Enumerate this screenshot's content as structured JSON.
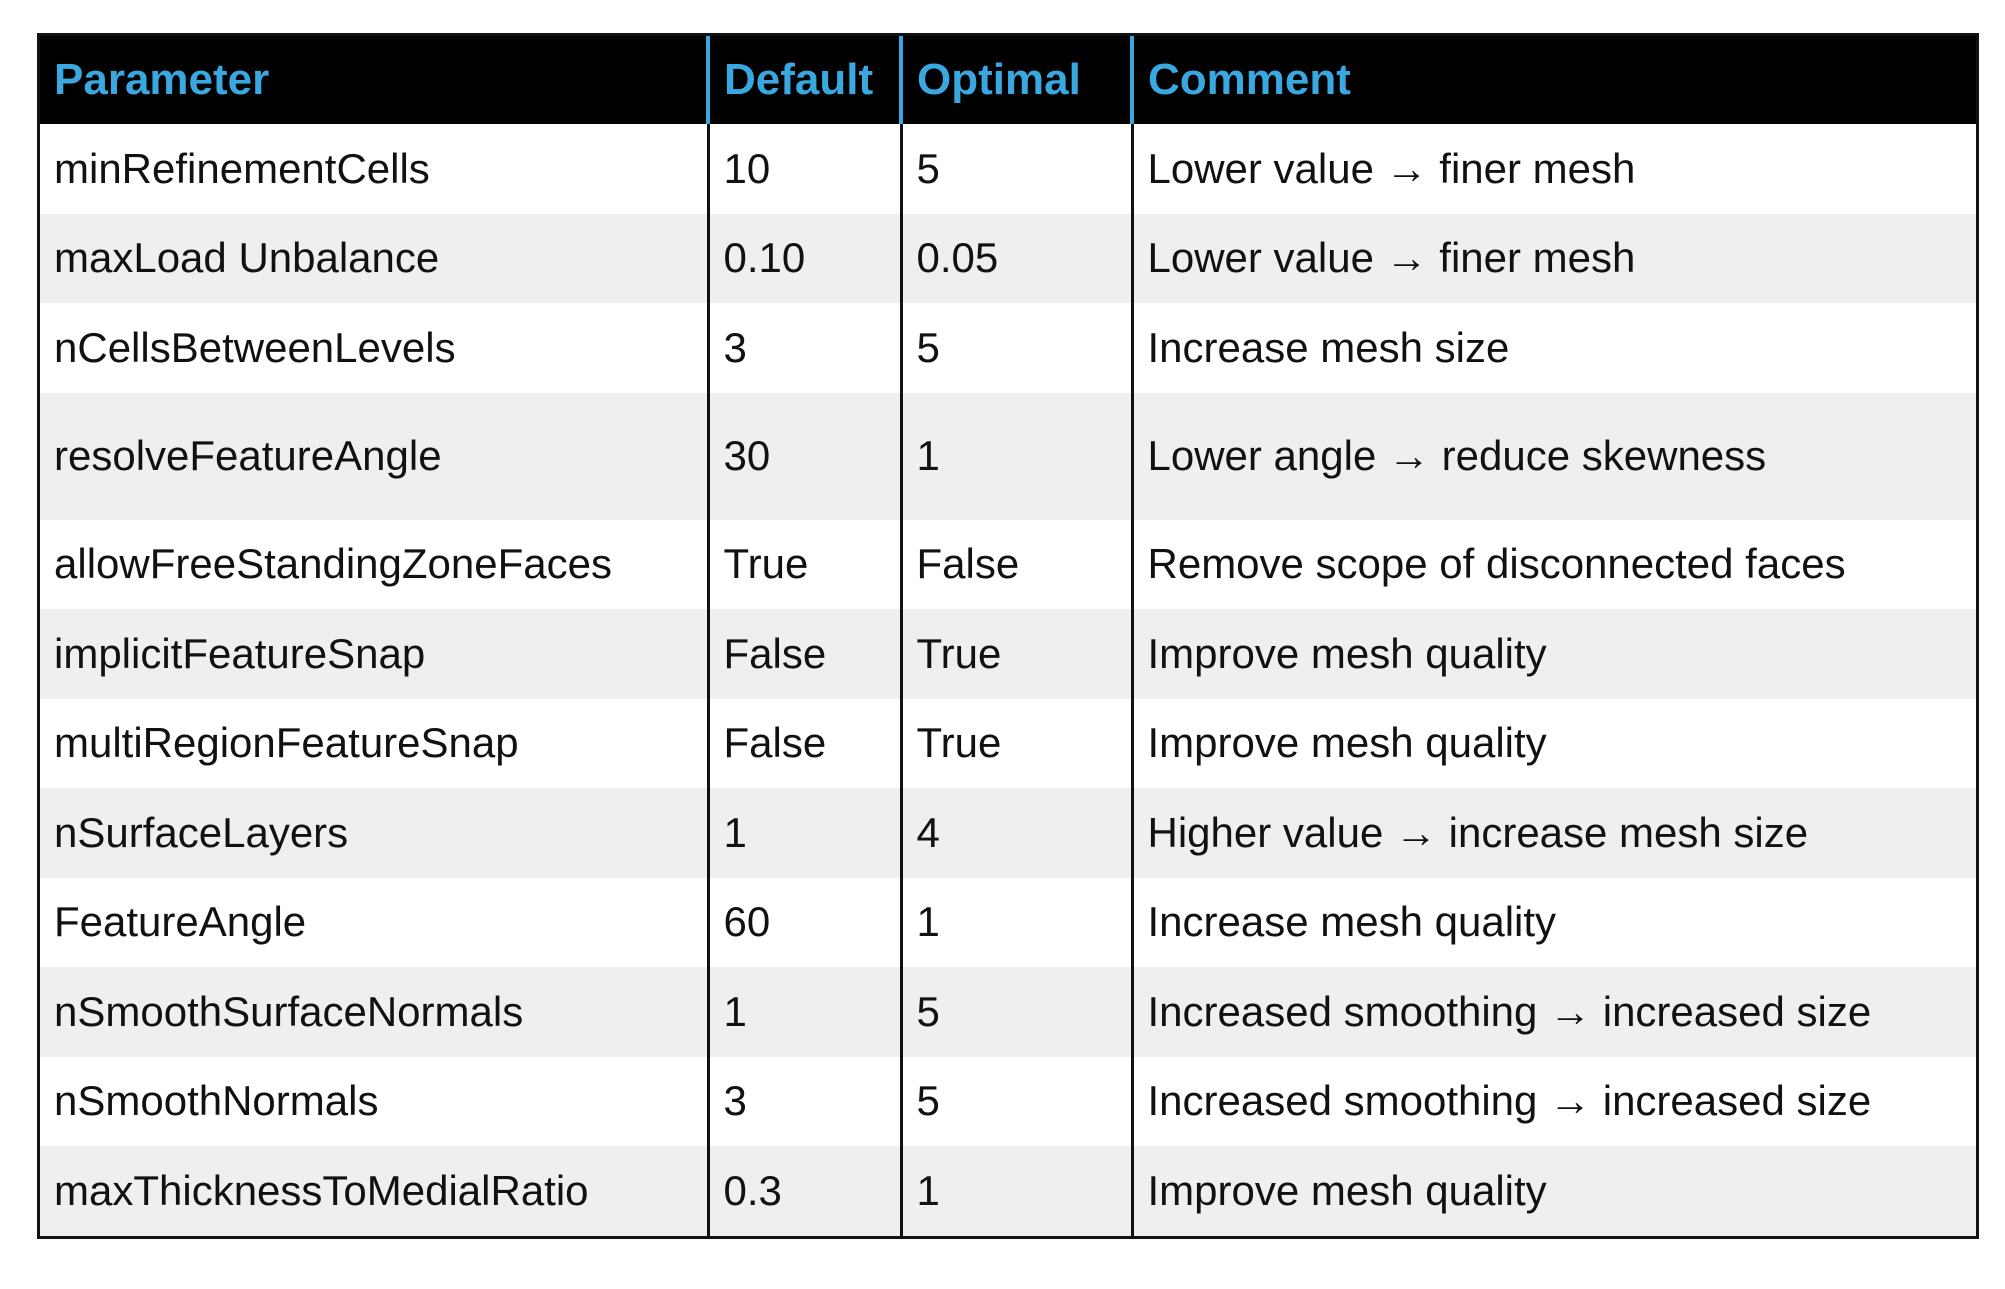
{
  "table": {
    "headers": [
      "Parameter",
      "Default",
      "Optimal",
      "Comment"
    ],
    "rows": [
      [
        "minRefinementCells",
        "10",
        "5",
        "Lower value → finer mesh"
      ],
      [
        "maxLoad Unbalance",
        "0.10",
        "0.05",
        "Lower value → finer mesh"
      ],
      [
        "nCellsBetweenLevels",
        "3",
        "5",
        "Increase mesh size"
      ],
      [
        "resolveFeatureAngle",
        "30",
        "1",
        "Lower angle → reduce skewness"
      ],
      [
        "allowFreeStandingZoneFaces",
        "True",
        "False",
        "Remove scope of disconnected faces"
      ],
      [
        "implicitFeatureSnap",
        "False",
        "True",
        "Improve mesh quality"
      ],
      [
        "multiRegionFeatureSnap",
        "False",
        "True",
        "Improve mesh quality"
      ],
      [
        "nSurfaceLayers",
        "1",
        "4",
        "Higher value → increase mesh size"
      ],
      [
        "FeatureAngle",
        "60",
        "1",
        "Increase mesh quality"
      ],
      [
        "nSmoothSurfaceNormals",
        "1",
        "5",
        "Increased smoothing → increased size"
      ],
      [
        "nSmoothNormals",
        "3",
        "5",
        "Increased smoothing → increased size"
      ],
      [
        "maxThicknessToMedialRatio",
        "0.3",
        "1",
        "Improve mesh quality"
      ]
    ]
  },
  "colors": {
    "header_background": "#000000",
    "header_text": "#3aa8e0",
    "row_stripe": "#efefef"
  }
}
